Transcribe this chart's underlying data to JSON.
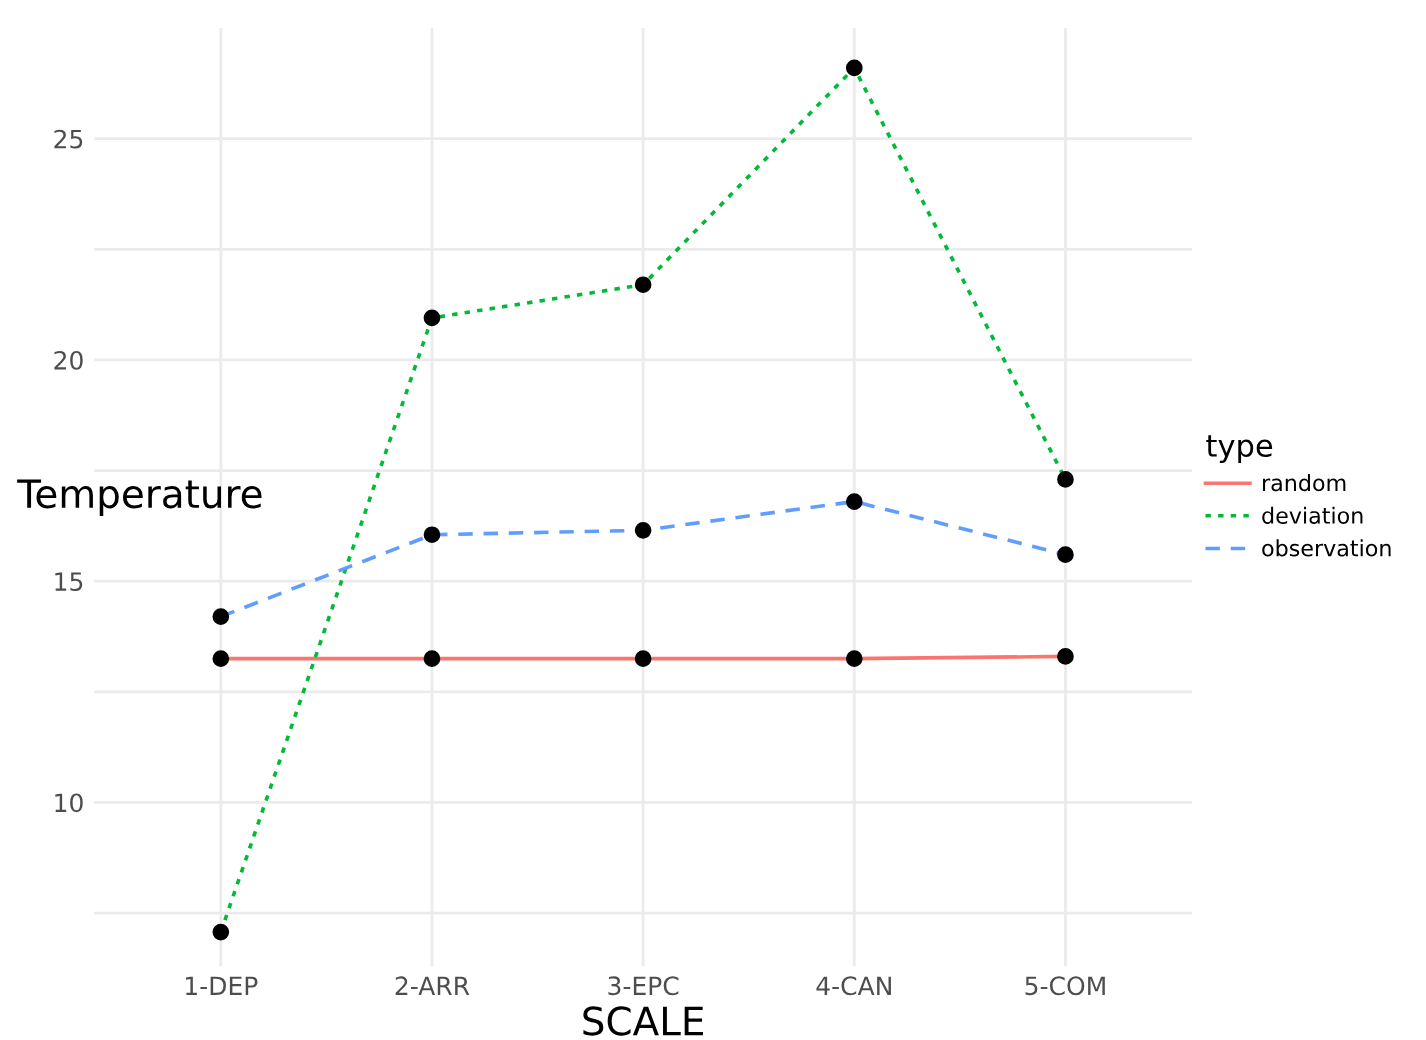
{
  "chart_data": {
    "type": "line",
    "xlabel": "SCALE",
    "ylabel": "Temperature",
    "legend_title": "type",
    "categories": [
      "1-DEP",
      "2-ARR",
      "3-EPC",
      "4-CAN",
      "5-COM"
    ],
    "series": [
      {
        "name": "random",
        "color": "#f8766d",
        "line_style": "solid",
        "values": [
          13.25,
          13.25,
          13.25,
          13.25,
          13.3
        ]
      },
      {
        "name": "deviation",
        "color": "#00ba38",
        "line_style": "dotted",
        "values": [
          7.07,
          20.95,
          21.7,
          26.6,
          17.3
        ]
      },
      {
        "name": "observation",
        "color": "#619cff",
        "line_style": "dashed",
        "values": [
          14.2,
          16.05,
          16.15,
          16.8,
          15.6
        ]
      }
    ],
    "ylim": [
      6.3,
      27.5
    ],
    "yticks": [
      {
        "value": 7.5,
        "label": null
      },
      10,
      {
        "value": 12.5,
        "label": null
      },
      15,
      {
        "value": 17.5,
        "label": null
      },
      20,
      {
        "value": 22.5,
        "label": null
      },
      25
    ],
    "grid": true,
    "legend": "right",
    "marker": "circle"
  }
}
